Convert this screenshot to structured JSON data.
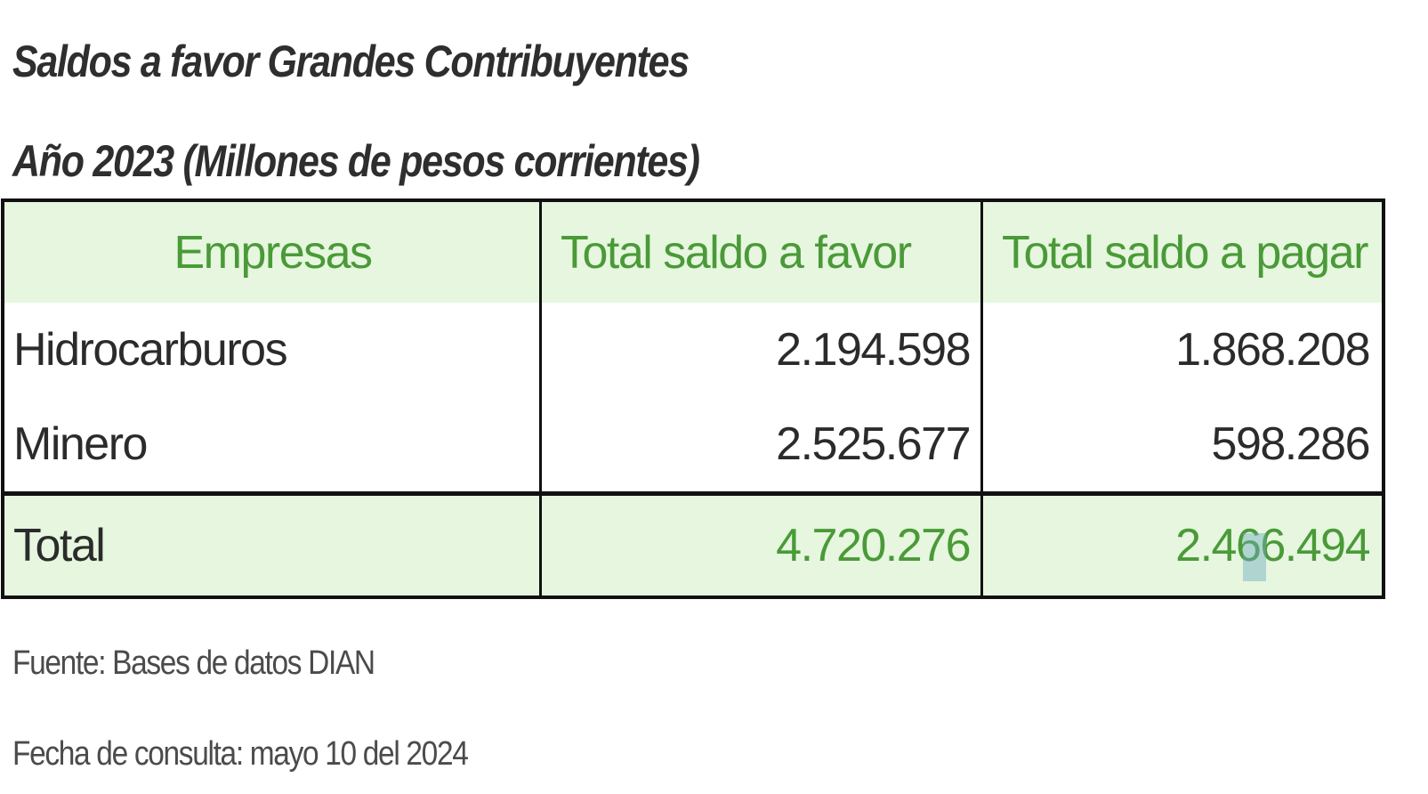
{
  "title": "Saldos a favor Grandes Contribuyentes",
  "subtitle": "Año 2023 (Millones de pesos corrientes)",
  "table": {
    "headers": [
      "Empresas",
      "Total saldo a favor",
      "Total saldo a pagar"
    ],
    "rows": [
      [
        "Hidrocarburos",
        "2.194.598",
        "1.868.208"
      ],
      [
        "Minero",
        "2.525.677",
        "598.286"
      ]
    ],
    "total": [
      "Total",
      "4.720.276",
      "2.466.494"
    ]
  },
  "footnotes": {
    "source": "Fuente: Bases de datos DIAN",
    "date": "Fecha de consulta: mayo 10 del 2024"
  },
  "colors": {
    "header_background": "#e6f6df",
    "accent_green": "#4a9a38",
    "border": "#111111"
  }
}
